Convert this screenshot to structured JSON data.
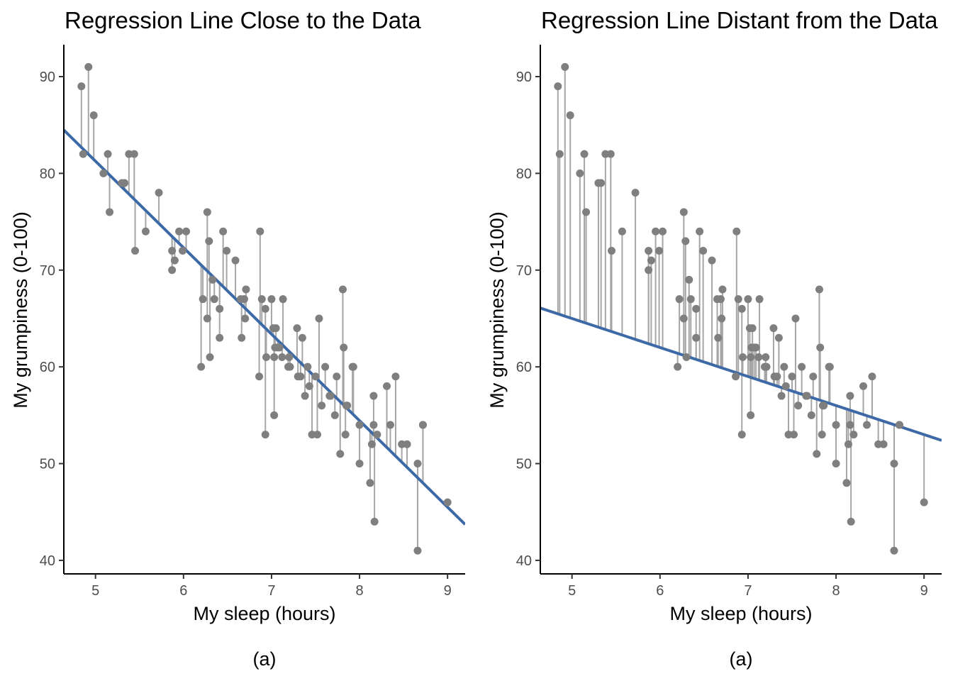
{
  "chart_data": [
    {
      "type": "scatter",
      "title": "Regression Line Close to the Data",
      "xlabel": "My sleep (hours)",
      "ylabel": "My grumpiness (0-100)",
      "caption": "(a)",
      "xlim": [
        4.64,
        9.2
      ],
      "ylim": [
        38.6,
        93.3
      ],
      "x_ticks": [
        5,
        6,
        7,
        8,
        9
      ],
      "y_ticks": [
        40,
        50,
        60,
        70,
        80,
        90
      ],
      "grid": false,
      "regression_line": {
        "intercept": 125.96,
        "slope": -8.94
      },
      "show_residuals": true
    },
    {
      "type": "scatter",
      "title": "Regression Line Distant from the Data",
      "xlabel": "My sleep (hours)",
      "ylabel": "My grumpiness (0-100)",
      "caption": "(a)",
      "xlim": [
        4.64,
        9.2
      ],
      "ylim": [
        38.6,
        93.3
      ],
      "x_ticks": [
        5,
        6,
        7,
        8,
        9
      ],
      "y_ticks": [
        40,
        50,
        60,
        70,
        80,
        90
      ],
      "grid": false,
      "regression_line": {
        "intercept": 80,
        "slope": -3
      },
      "show_residuals": true
    }
  ],
  "points": [
    [
      4.84,
      89
    ],
    [
      4.86,
      82
    ],
    [
      4.92,
      91
    ],
    [
      4.98,
      86
    ],
    [
      5.09,
      80
    ],
    [
      5.14,
      82
    ],
    [
      5.16,
      76
    ],
    [
      5.3,
      79
    ],
    [
      5.33,
      79
    ],
    [
      5.38,
      82
    ],
    [
      5.44,
      82
    ],
    [
      5.45,
      72
    ],
    [
      5.57,
      74
    ],
    [
      5.72,
      78
    ],
    [
      5.87,
      72
    ],
    [
      5.87,
      70
    ],
    [
      5.9,
      71
    ],
    [
      5.95,
      74
    ],
    [
      5.99,
      72
    ],
    [
      6.03,
      74
    ],
    [
      6.2,
      60
    ],
    [
      6.22,
      67
    ],
    [
      6.27,
      76
    ],
    [
      6.27,
      65
    ],
    [
      6.29,
      73
    ],
    [
      6.3,
      61
    ],
    [
      6.33,
      69
    ],
    [
      6.35,
      67
    ],
    [
      6.41,
      66
    ],
    [
      6.41,
      63
    ],
    [
      6.45,
      74
    ],
    [
      6.49,
      72
    ],
    [
      6.59,
      71
    ],
    [
      6.65,
      67
    ],
    [
      6.66,
      63
    ],
    [
      6.69,
      67
    ],
    [
      6.7,
      65
    ],
    [
      6.71,
      68
    ],
    [
      6.86,
      59
    ],
    [
      6.87,
      74
    ],
    [
      6.89,
      67
    ],
    [
      6.93,
      53
    ],
    [
      6.93,
      66
    ],
    [
      6.94,
      61
    ],
    [
      7.0,
      67
    ],
    [
      7.02,
      64
    ],
    [
      7.03,
      55
    ],
    [
      7.03,
      61
    ],
    [
      7.04,
      62
    ],
    [
      7.05,
      64
    ],
    [
      7.07,
      62
    ],
    [
      7.09,
      62
    ],
    [
      7.12,
      61
    ],
    [
      7.13,
      67
    ],
    [
      7.19,
      60
    ],
    [
      7.2,
      61
    ],
    [
      7.21,
      60
    ],
    [
      7.29,
      64
    ],
    [
      7.3,
      59
    ],
    [
      7.33,
      59
    ],
    [
      7.35,
      63
    ],
    [
      7.38,
      57
    ],
    [
      7.41,
      60
    ],
    [
      7.43,
      58
    ],
    [
      7.46,
      53
    ],
    [
      7.5,
      59
    ],
    [
      7.52,
      53
    ],
    [
      7.54,
      65
    ],
    [
      7.57,
      56
    ],
    [
      7.61,
      60
    ],
    [
      7.66,
      57
    ],
    [
      7.67,
      57
    ],
    [
      7.72,
      55
    ],
    [
      7.74,
      59
    ],
    [
      7.78,
      51
    ],
    [
      7.81,
      68
    ],
    [
      7.82,
      62
    ],
    [
      7.84,
      53
    ],
    [
      7.85,
      56
    ],
    [
      7.86,
      56
    ],
    [
      7.92,
      60
    ],
    [
      7.93,
      60
    ],
    [
      8.0,
      50
    ],
    [
      8.0,
      54
    ],
    [
      8.12,
      48
    ],
    [
      8.14,
      52
    ],
    [
      8.16,
      54
    ],
    [
      8.16,
      57
    ],
    [
      8.17,
      44
    ],
    [
      8.2,
      53
    ],
    [
      8.31,
      58
    ],
    [
      8.35,
      54
    ],
    [
      8.41,
      59
    ],
    [
      8.48,
      52
    ],
    [
      8.54,
      52
    ],
    [
      8.66,
      50
    ],
    [
      8.66,
      41
    ],
    [
      8.72,
      54
    ],
    [
      9.0,
      46
    ],
    [
      8.72,
      54
    ]
  ],
  "colors": {
    "point": "#7f7f7f",
    "residual": "#a6a6a6",
    "line": "#3d6aa6",
    "axis": "#000000"
  }
}
